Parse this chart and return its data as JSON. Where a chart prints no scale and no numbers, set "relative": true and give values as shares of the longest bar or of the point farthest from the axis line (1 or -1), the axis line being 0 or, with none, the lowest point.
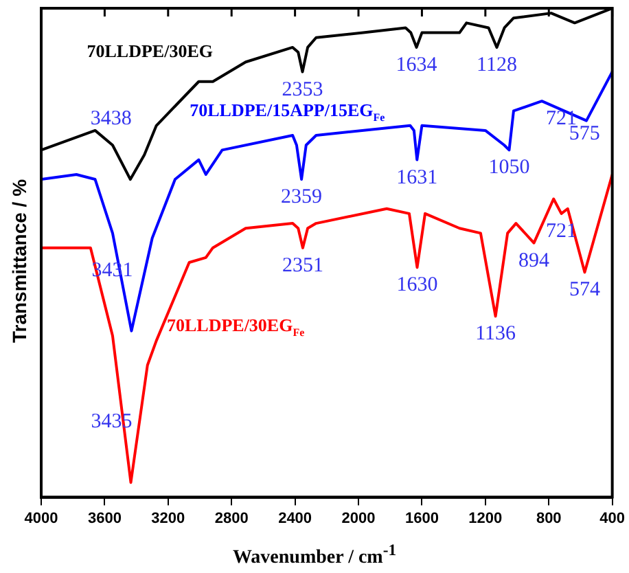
{
  "chart_data": {
    "type": "line",
    "xlabel": "Wavenumber / cm$^{-1}$",
    "ylabel": "Transmittance / %",
    "relative": true,
    "xlim": [
      4000,
      400
    ],
    "xticks": [
      4000,
      3600,
      3200,
      2800,
      2400,
      2000,
      1600,
      1200,
      800,
      400
    ],
    "tick_labels": "x",
    "grid": false,
    "legend": false,
    "marker": "none",
    "line_style": "solid",
    "series": [
      {
        "name": "70LLDPE/30EG",
        "color": "#000000",
        "x": [
          4000,
          3660,
          3550,
          3438,
          3350,
          3274,
          3007,
          2918,
          2711,
          2415,
          2380,
          2353,
          2320,
          2267,
          1970,
          1703,
          1670,
          1634,
          1600,
          1526,
          1363,
          1319,
          1180,
          1128,
          1080,
          1022,
          785,
          637,
          400
        ],
        "values": [
          0.71,
          0.75,
          0.72,
          0.65,
          0.7,
          0.76,
          0.85,
          0.85,
          0.89,
          0.92,
          0.91,
          0.87,
          0.92,
          0.94,
          0.95,
          0.96,
          0.95,
          0.92,
          0.95,
          0.95,
          0.95,
          0.97,
          0.96,
          0.92,
          0.96,
          0.98,
          0.99,
          0.97,
          1.0
        ]
      },
      {
        "name": "70LLDPE/15APP/15EG$_{Fe}$",
        "color": "#0000ff",
        "x": [
          4000,
          3778,
          3660,
          3550,
          3431,
          3300,
          3156,
          3007,
          2962,
          2859,
          2415,
          2390,
          2359,
          2330,
          2267,
          1674,
          1650,
          1631,
          1600,
          1200,
          1081,
          1050,
          1022,
          844,
          563,
          400
        ],
        "values": [
          0.65,
          0.66,
          0.65,
          0.54,
          0.34,
          0.53,
          0.65,
          0.69,
          0.66,
          0.71,
          0.74,
          0.72,
          0.65,
          0.72,
          0.74,
          0.76,
          0.75,
          0.69,
          0.76,
          0.75,
          0.72,
          0.71,
          0.79,
          0.81,
          0.77,
          0.87
        ]
      },
      {
        "name": "70LLDPE/30EG$_{Fe}$",
        "color": "#ff0000",
        "x": [
          4000,
          3689,
          3550,
          3435,
          3330,
          3274,
          3067,
          2962,
          2918,
          2711,
          2415,
          2380,
          2351,
          2320,
          2267,
          1822,
          1680,
          1630,
          1580,
          1363,
          1230,
          1136,
          1060,
          1007,
          894,
          770,
          721,
          681,
          574,
          400
        ],
        "values": [
          0.51,
          0.51,
          0.33,
          0.03,
          0.27,
          0.32,
          0.48,
          0.49,
          0.51,
          0.55,
          0.56,
          0.55,
          0.51,
          0.55,
          0.56,
          0.59,
          0.58,
          0.47,
          0.58,
          0.55,
          0.54,
          0.37,
          0.54,
          0.56,
          0.52,
          0.61,
          0.58,
          0.59,
          0.46,
          0.66
        ]
      }
    ],
    "annotations": [
      {
        "text": "3438",
        "x": 3438,
        "y": 0.65
      },
      {
        "text": "2353",
        "x": 2353,
        "y": 0.87
      },
      {
        "text": "1634",
        "x": 1634,
        "y": 0.92
      },
      {
        "text": "1128",
        "x": 1128,
        "y": 0.92
      },
      {
        "text": "3431",
        "x": 3431,
        "y": 0.34
      },
      {
        "text": "2359",
        "x": 2359,
        "y": 0.65
      },
      {
        "text": "1631",
        "x": 1631,
        "y": 0.69
      },
      {
        "text": "1050",
        "x": 1050,
        "y": 0.71
      },
      {
        "text": "721",
        "x": 721,
        "y": 0.81
      },
      {
        "text": "575",
        "x": 575,
        "y": 0.78
      },
      {
        "text": "3435",
        "x": 3435,
        "y": 0.03
      },
      {
        "text": "2351",
        "x": 2351,
        "y": 0.51
      },
      {
        "text": "1630",
        "x": 1630,
        "y": 0.47
      },
      {
        "text": "1136",
        "x": 1136,
        "y": 0.37
      },
      {
        "text": "894",
        "x": 894,
        "y": 0.52
      },
      {
        "text": "721",
        "x": 721,
        "y": 0.58
      },
      {
        "text": "574",
        "x": 574,
        "y": 0.46
      }
    ]
  }
}
